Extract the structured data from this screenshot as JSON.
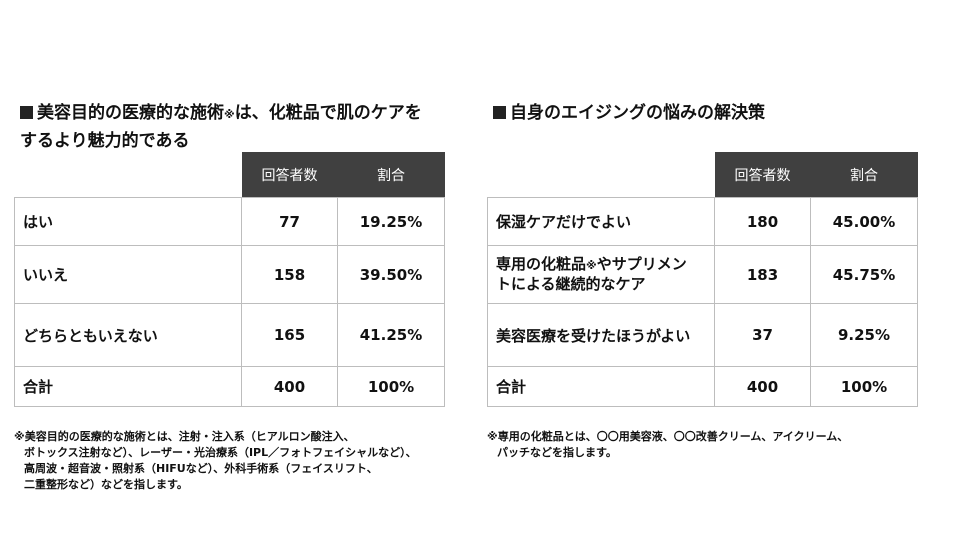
{
  "left": {
    "title_line1_a": "美容目的の医療的な施術",
    "title_note": "※",
    "title_line1_b": "は、化粧品で肌のケアを",
    "title_line2": "するより魅力的である",
    "headers": [
      "回答者数",
      "割合"
    ],
    "rows": [
      {
        "label": "はい",
        "count": "77",
        "ratio": "19.25%"
      },
      {
        "label": "いいえ",
        "count": "158",
        "ratio": "39.50%"
      },
      {
        "label": "どちらともいえない",
        "count": "165",
        "ratio": "41.25%"
      },
      {
        "label": "合計",
        "count": "400",
        "ratio": "100%"
      }
    ],
    "footnote": [
      "※美容目的の医療的な施術とは、注射・注入系（ヒアルロン酸注入、",
      "ボトックス注射など）、レーザー・光治療系（IPL／フォトフェイシャルなど）、",
      "高周波・超音波・照射系（HIFUなど）、外科手術系（フェイスリフト、",
      "二重整形など）などを指します。"
    ]
  },
  "right": {
    "title": "自身のエイジングの悩みの解決策",
    "headers": [
      "回答者数",
      "割合"
    ],
    "rows": [
      {
        "label": "保湿ケアだけでよい",
        "count": "180",
        "ratio": "45.00%"
      },
      {
        "label_a": "専用の化粧品",
        "label_note": "※",
        "label_b": "やサプリメン",
        "label_c": "トによる継続的なケア",
        "count": "183",
        "ratio": "45.75%"
      },
      {
        "label": "美容医療を受けたほうがよい",
        "count": "37",
        "ratio": "9.25%"
      },
      {
        "label": "合計",
        "count": "400",
        "ratio": "100%"
      }
    ],
    "footnote": [
      "※専用の化粧品とは、〇〇用美容液、〇〇改善クリーム、アイクリーム、",
      "パッチなどを指します。"
    ]
  }
}
